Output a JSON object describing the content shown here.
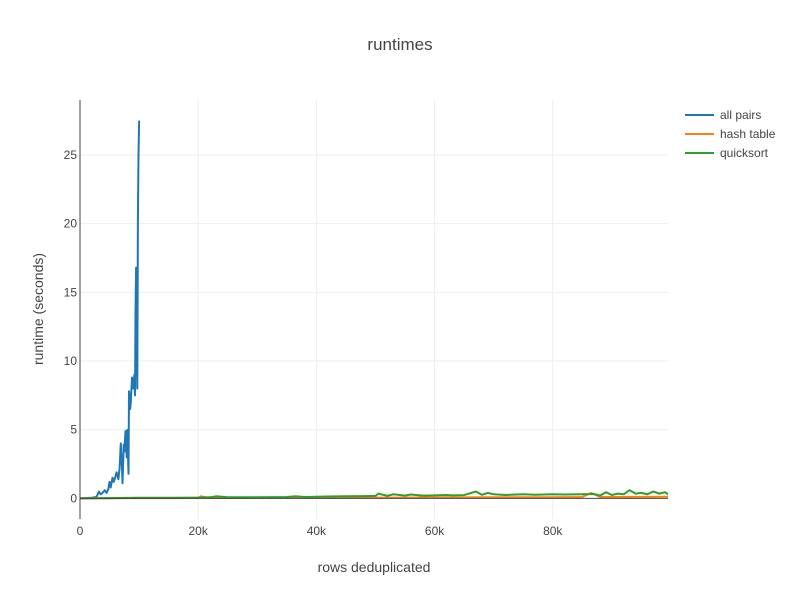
{
  "chart_data": {
    "type": "line",
    "title": "runtimes",
    "xlabel": "rows deduplicated",
    "ylabel": "runtime (seconds)",
    "xlim": [
      0,
      99500
    ],
    "ylim": [
      -1.5,
      29
    ],
    "xticks": [
      0,
      20000,
      40000,
      60000,
      80000
    ],
    "xtick_labels": [
      "0",
      "20k",
      "40k",
      "60k",
      "80k"
    ],
    "yticks": [
      0,
      5,
      10,
      15,
      20,
      25
    ],
    "ytick_labels": [
      "0",
      "5",
      "10",
      "15",
      "20",
      "25"
    ],
    "grid": true,
    "legend_position": "top-right",
    "series": [
      {
        "name": "all pairs",
        "color": "#1f77b4",
        "x": [
          0,
          2000,
          2800,
          3000,
          3200,
          3500,
          3800,
          4200,
          4500,
          4800,
          5000,
          5200,
          5500,
          5700,
          6000,
          6200,
          6500,
          6700,
          6900,
          7000,
          7100,
          7200,
          7400,
          7500,
          7700,
          7900,
          8000,
          8200,
          8300,
          8500,
          8600,
          8800,
          9000,
          9200,
          9300,
          9400,
          9500,
          9600,
          9700,
          9800,
          9900,
          10000
        ],
        "y": [
          0,
          0.05,
          0.1,
          0.3,
          0.5,
          0.3,
          0.4,
          0.6,
          0.4,
          0.7,
          1.2,
          0.8,
          1.5,
          1.2,
          1.6,
          1.9,
          1.4,
          2.2,
          4.0,
          3.0,
          2.3,
          1.1,
          3.9,
          3.4,
          4.9,
          3.0,
          5.0,
          1.8,
          7.8,
          6.5,
          7.0,
          8.8,
          8.0,
          9.0,
          7.5,
          13.4,
          16.8,
          11.5,
          8.0,
          20.3,
          25.0,
          27.5
        ]
      },
      {
        "name": "hash table",
        "color": "#ff7f0e",
        "x": [
          0,
          5000,
          10000,
          15000,
          20000,
          20500,
          22000,
          25000,
          30000,
          35000,
          40000,
          45000,
          50000,
          55000,
          60000,
          65000,
          70000,
          75000,
          80000,
          85000,
          86500,
          88000,
          90000,
          95000,
          99500
        ],
        "y": [
          0,
          0.01,
          0.02,
          0.02,
          0.03,
          0.15,
          0.03,
          0.03,
          0.04,
          0.04,
          0.05,
          0.05,
          0.06,
          0.06,
          0.07,
          0.07,
          0.08,
          0.08,
          0.09,
          0.1,
          0.4,
          0.1,
          0.1,
          0.11,
          0.12
        ]
      },
      {
        "name": "quicksort",
        "color": "#2ca02c",
        "x": [
          0,
          5000,
          10000,
          15000,
          20000,
          22000,
          23000,
          25000,
          30000,
          35000,
          36500,
          38000,
          40000,
          42000,
          45000,
          48000,
          50000,
          50500,
          52000,
          53000,
          55000,
          56000,
          58000,
          60000,
          62000,
          63000,
          65000,
          67000,
          68000,
          69000,
          70000,
          72000,
          75000,
          77000,
          80000,
          82000,
          85000,
          87000,
          88000,
          89000,
          90000,
          91000,
          92000,
          93000,
          94000,
          95000,
          96000,
          97000,
          98000,
          99000,
          99500
        ],
        "y": [
          0,
          0.02,
          0.04,
          0.05,
          0.06,
          0.08,
          0.15,
          0.08,
          0.09,
          0.1,
          0.15,
          0.1,
          0.12,
          0.14,
          0.15,
          0.17,
          0.18,
          0.35,
          0.18,
          0.3,
          0.2,
          0.28,
          0.2,
          0.22,
          0.25,
          0.22,
          0.24,
          0.5,
          0.26,
          0.4,
          0.3,
          0.25,
          0.3,
          0.27,
          0.3,
          0.28,
          0.3,
          0.32,
          0.2,
          0.45,
          0.25,
          0.35,
          0.3,
          0.6,
          0.35,
          0.4,
          0.3,
          0.5,
          0.35,
          0.45,
          0.3
        ]
      }
    ]
  }
}
